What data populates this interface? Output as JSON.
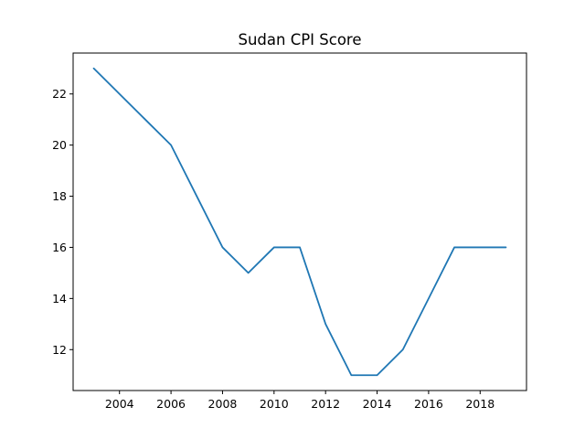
{
  "chart_data": {
    "type": "line",
    "title": "Sudan CPI Score",
    "xlabel": "",
    "ylabel": "",
    "x": [
      2003,
      2004,
      2005,
      2006,
      2007,
      2008,
      2009,
      2010,
      2011,
      2012,
      2013,
      2014,
      2015,
      2016,
      2017,
      2018,
      2019
    ],
    "series": [
      {
        "values": [
          23,
          22,
          21,
          20,
          18,
          16,
          15,
          16,
          16,
          13,
          11,
          11,
          12,
          14,
          16,
          16,
          16
        ],
        "color": "#1f77b4"
      }
    ],
    "xlim": [
      2002.2,
      2019.8
    ],
    "ylim": [
      10.4,
      23.6
    ],
    "xticks": [
      2004,
      2006,
      2008,
      2010,
      2012,
      2014,
      2016,
      2018
    ],
    "yticks": [
      12,
      14,
      16,
      18,
      20,
      22
    ],
    "grid": false,
    "legend": "none"
  }
}
